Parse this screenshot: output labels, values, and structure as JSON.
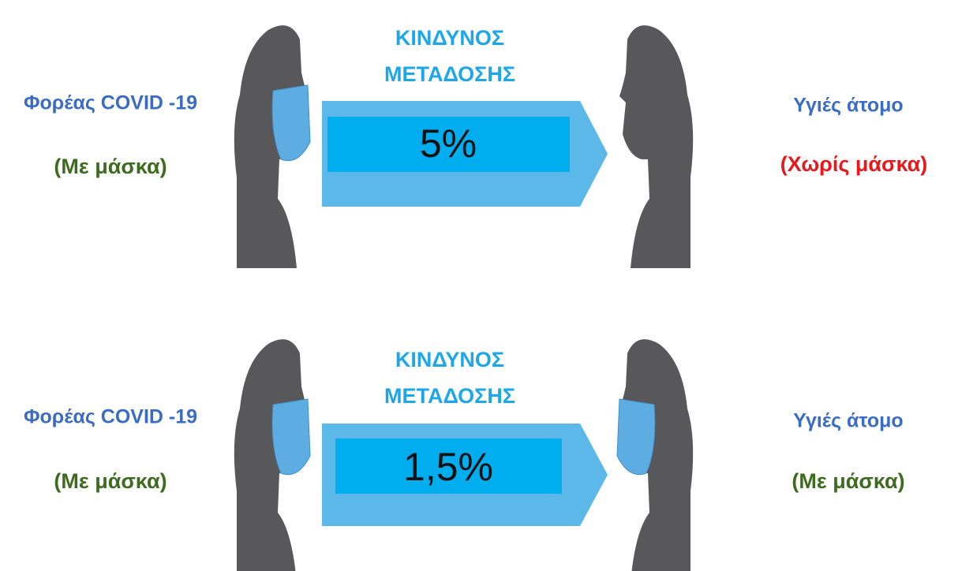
{
  "rows": [
    {
      "left": {
        "title": "Φορέας COVID -19",
        "mask": "(Με  μάσκα)"
      },
      "risk": {
        "heading": [
          "ΚΙΝΔΥΝΟΣ",
          "ΜΕΤΑΔΟΣΗΣ"
        ],
        "value": "5%"
      },
      "right": {
        "title": "Υγιές άτομο",
        "mask": "(Χωρίς μάσκα)"
      }
    },
    {
      "left": {
        "title": "Φορέας COVID -19",
        "mask": "(Με  μάσκα)"
      },
      "risk": {
        "heading": [
          "ΚΙΝΔΥΝΟΣ",
          "ΜΕΤΑΔΟΣΗΣ"
        ],
        "value": "1,5%"
      },
      "right": {
        "title": "Υγιές άτομο",
        "mask": "(Με  μάσκα)"
      }
    }
  ]
}
